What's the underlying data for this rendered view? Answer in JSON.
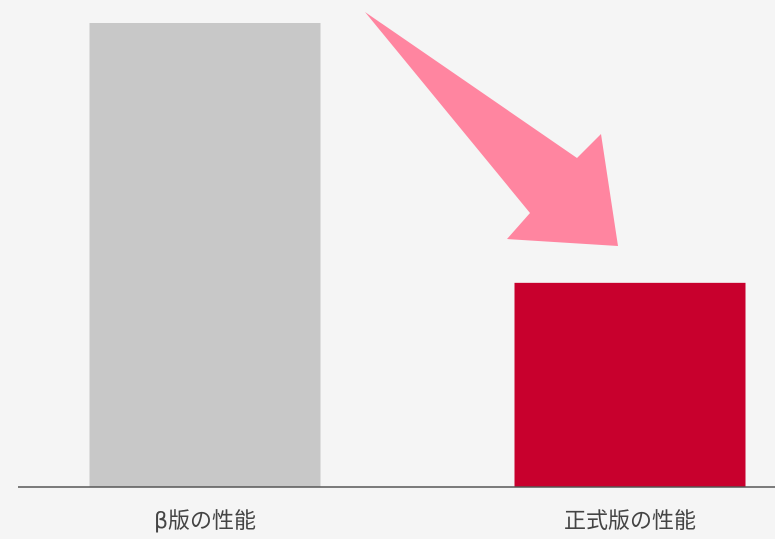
{
  "chart_data": {
    "type": "bar",
    "categories": [
      "β版の性能",
      "正式版の性能"
    ],
    "values": [
      100,
      44
    ],
    "colors": [
      "#c8c8c8",
      "#c8002d"
    ]
  }
}
